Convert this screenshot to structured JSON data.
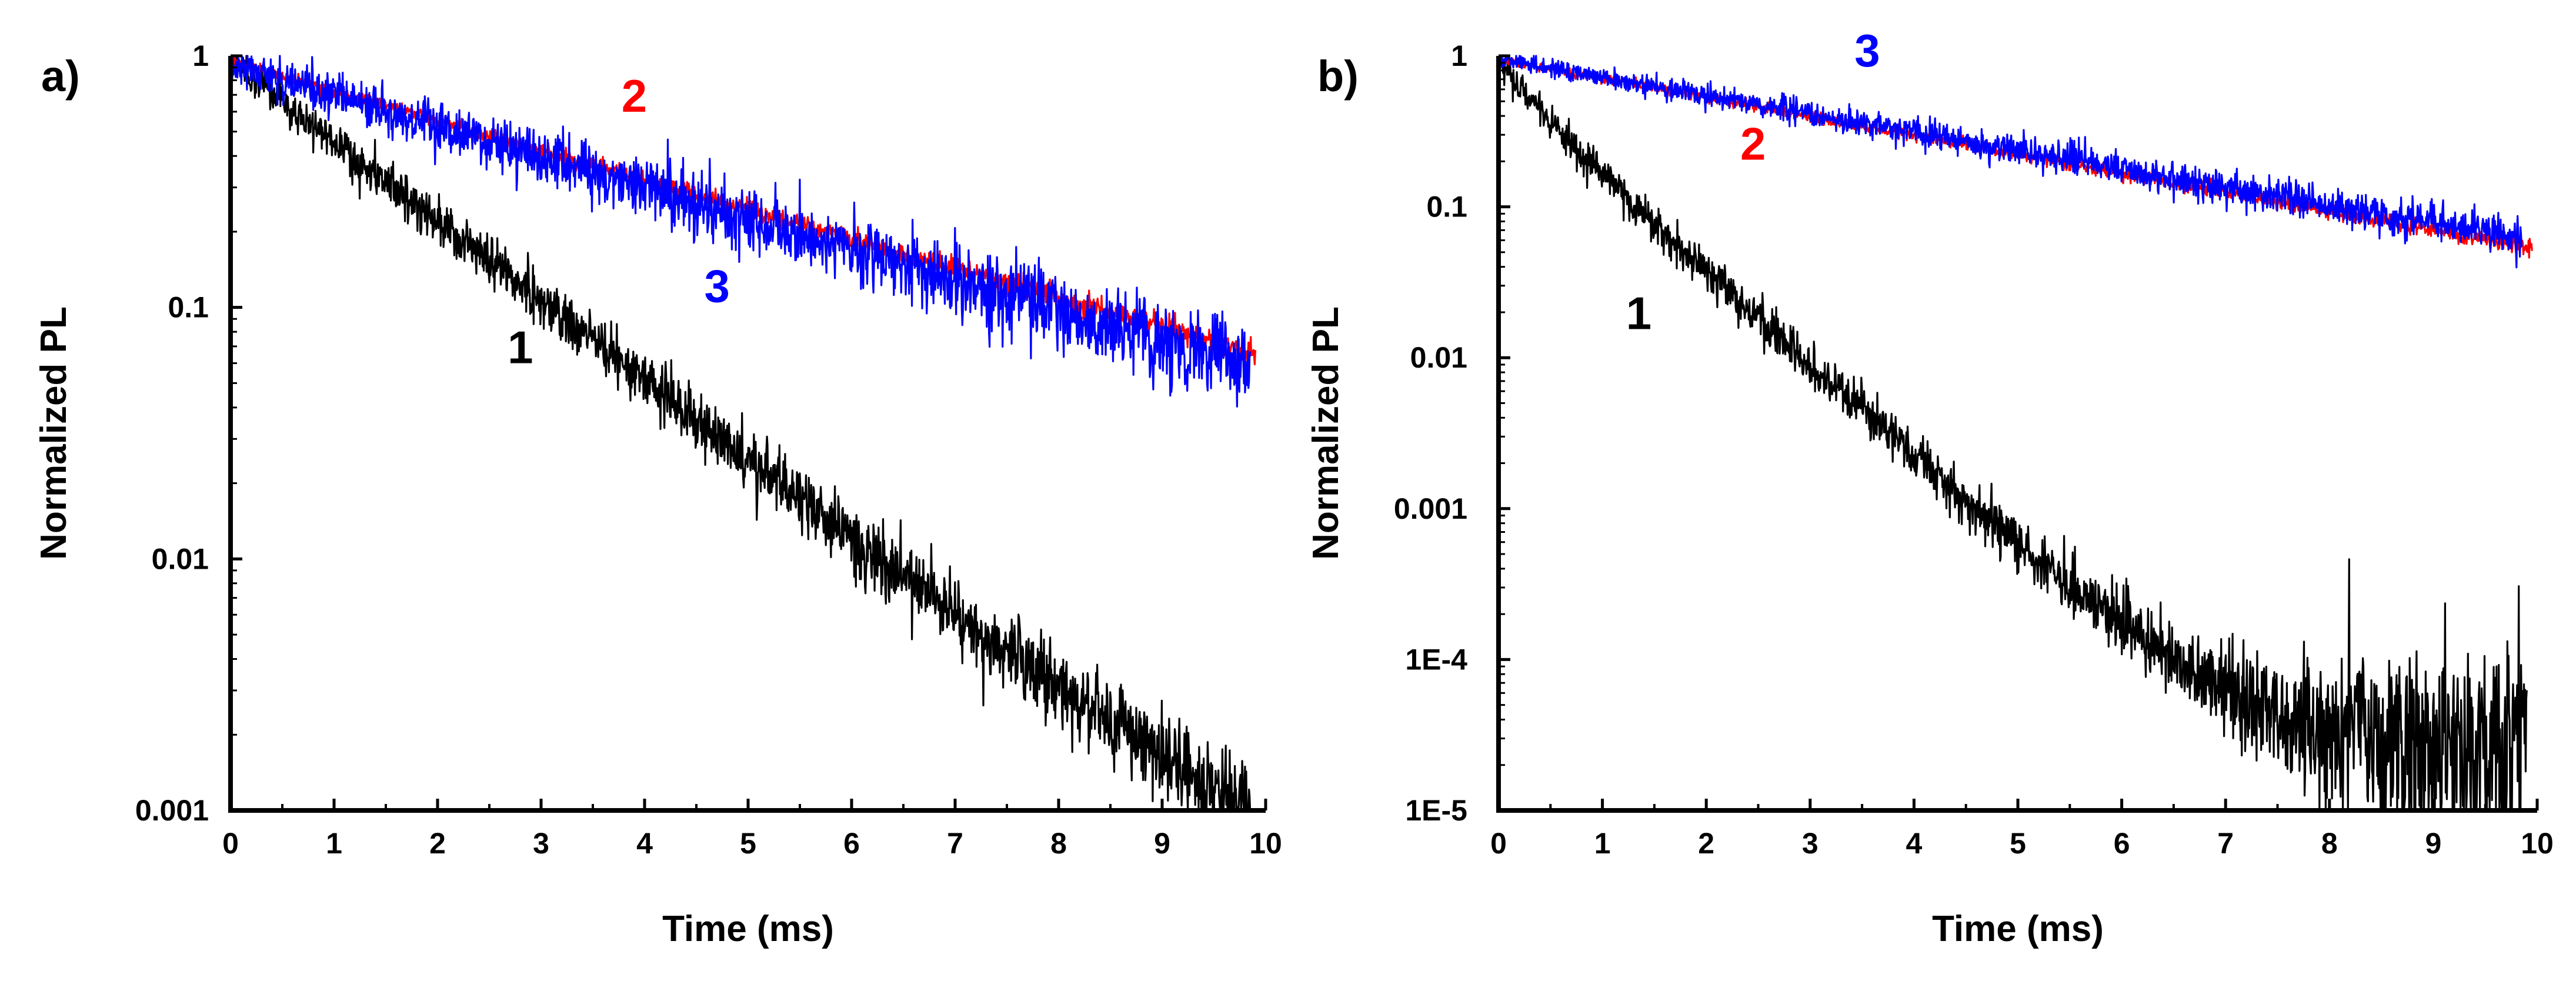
{
  "chart_data": [
    {
      "type": "line",
      "panel_label": "a)",
      "xlabel": "Time (ms)",
      "ylabel": "Normalized PL",
      "xlim": [
        0,
        10
      ],
      "ylim": [
        0.001,
        1
      ],
      "yscale": "log",
      "x_ticks": [
        0,
        1,
        2,
        3,
        4,
        5,
        6,
        7,
        8,
        9,
        10
      ],
      "x_tick_labels": [
        "0",
        "1",
        "2",
        "3",
        "4",
        "5",
        "6",
        "7",
        "8",
        "9",
        "10"
      ],
      "y_ticks": [
        0.001,
        0.01,
        0.1,
        1
      ],
      "y_tick_labels": [
        "0.001",
        "0.01",
        "0.1",
        "1"
      ],
      "series": [
        {
          "name": "1",
          "color": "#000000",
          "model": "exp",
          "x_end": 9.85,
          "amplitude": 0.95,
          "tau_ms": 1.37,
          "noise_sigma": 0.09,
          "noise_floor": 0.00035
        },
        {
          "name": "2",
          "color": "#ff0000",
          "model": "exp",
          "x_end": 9.9,
          "amplitude": 0.95,
          "tau_ms": 3.7,
          "noise_sigma": 0.025,
          "noise_floor": 0
        },
        {
          "name": "3",
          "color": "#0000ff",
          "model": "exp",
          "x_end": 9.85,
          "amplitude": 0.92,
          "tau_ms": 3.55,
          "noise_sigma": 0.09,
          "noise_floor": 0
        }
      ],
      "annotations": [
        {
          "text": "1",
          "color": "#000000",
          "x": 2.8,
          "y": 0.06
        },
        {
          "text": "2",
          "color": "#ff0000",
          "x": 3.9,
          "y": 0.6
        },
        {
          "text": "3",
          "color": "#0000ff",
          "x": 4.7,
          "y": 0.105
        }
      ]
    },
    {
      "type": "line",
      "panel_label": "b)",
      "xlabel": "Time (ms)",
      "ylabel": "Normalized PL",
      "xlim": [
        0,
        10
      ],
      "ylim": [
        1e-05,
        1
      ],
      "yscale": "log",
      "x_ticks": [
        0,
        1,
        2,
        3,
        4,
        5,
        6,
        7,
        8,
        9,
        10
      ],
      "x_tick_labels": [
        "0",
        "1",
        "2",
        "3",
        "4",
        "5",
        "6",
        "7",
        "8",
        "9",
        "10"
      ],
      "y_ticks": [
        1e-05,
        0.0001,
        0.001,
        0.01,
        0.1,
        1
      ],
      "y_tick_labels": [
        "1E-5",
        "1E-4",
        "0.001",
        "0.01",
        "0.1",
        "1"
      ],
      "series": [
        {
          "name": "1",
          "color": "#000000",
          "model": "biexp",
          "x_end": 9.9,
          "a1": 0.35,
          "tau1_ms": 0.35,
          "a2": 0.58,
          "tau2_ms": 0.72,
          "noise_sigma": 0.12,
          "noise_floor": 4e-05
        },
        {
          "name": "2",
          "color": "#ff0000",
          "model": "exp",
          "x_end": 9.95,
          "amplitude": 0.95,
          "tau_ms": 3.45,
          "noise_sigma": 0.03,
          "noise_floor": 0
        },
        {
          "name": "3",
          "color": "#0000ff",
          "model": "exp",
          "x_end": 9.85,
          "amplitude": 0.95,
          "tau_ms": 3.6,
          "noise_sigma": 0.07,
          "noise_floor": 0
        }
      ],
      "annotations": [
        {
          "text": "1",
          "color": "#000000",
          "x": 1.35,
          "y": 0.0155
        },
        {
          "text": "2",
          "color": "#ff0000",
          "x": 2.45,
          "y": 0.205
        },
        {
          "text": "3",
          "color": "#0000ff",
          "x": 3.55,
          "y": 0.85
        }
      ]
    }
  ]
}
